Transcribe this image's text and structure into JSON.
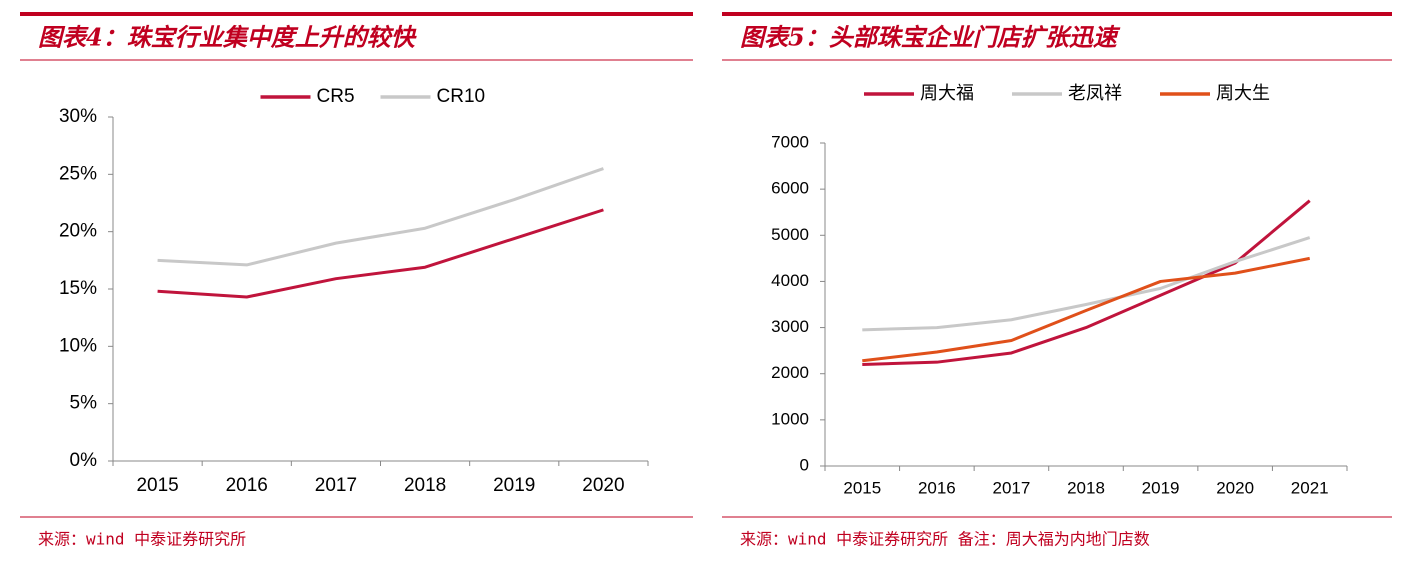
{
  "chart_data": [
    {
      "type": "line",
      "title": "图表4：珠宝行业集中度上升的较快",
      "categories": [
        "2015",
        "2016",
        "2017",
        "2018",
        "2019",
        "2020"
      ],
      "series": [
        {
          "name": "CR5",
          "color": "#c0143c",
          "values": [
            14.8,
            14.3,
            15.9,
            16.9,
            19.4,
            21.9
          ]
        },
        {
          "name": "CR10",
          "color": "#c8c8c8",
          "values": [
            17.5,
            17.1,
            19.0,
            20.3,
            22.8,
            25.5
          ]
        }
      ],
      "ylim": [
        0,
        30
      ],
      "yticks": [
        {
          "value": 0,
          "label": "0%"
        },
        {
          "value": 5,
          "label": "5%"
        },
        {
          "value": 10,
          "label": "10%"
        },
        {
          "value": 15,
          "label": "15%"
        },
        {
          "value": 20,
          "label": "20%"
        },
        {
          "value": 25,
          "label": "25%"
        },
        {
          "value": 30,
          "label": "30%"
        }
      ],
      "grid": false,
      "source": "来源：wind 中泰证券研究所"
    },
    {
      "type": "line",
      "title": "图表5：头部珠宝企业门店扩张迅速",
      "categories": [
        "2015",
        "2016",
        "2017",
        "2018",
        "2019",
        "2020",
        "2021"
      ],
      "series": [
        {
          "name": "周大福",
          "color": "#c0143c",
          "values": [
            2200,
            2250,
            2450,
            3000,
            3700,
            4400,
            5750
          ]
        },
        {
          "name": "老凤祥",
          "color": "#c8c8c8",
          "values": [
            2950,
            3000,
            3170,
            3500,
            3850,
            4430,
            4950
          ]
        },
        {
          "name": "周大生",
          "color": "#e0501a",
          "values": [
            2280,
            2470,
            2720,
            3370,
            4000,
            4180,
            4500
          ]
        }
      ],
      "ylim": [
        0,
        7000
      ],
      "yticks": [
        0,
        1000,
        2000,
        3000,
        4000,
        5000,
        6000,
        7000
      ],
      "grid": false,
      "source": "来源：wind 中泰证券研究所 备注：周大福为内地门店数"
    }
  ]
}
